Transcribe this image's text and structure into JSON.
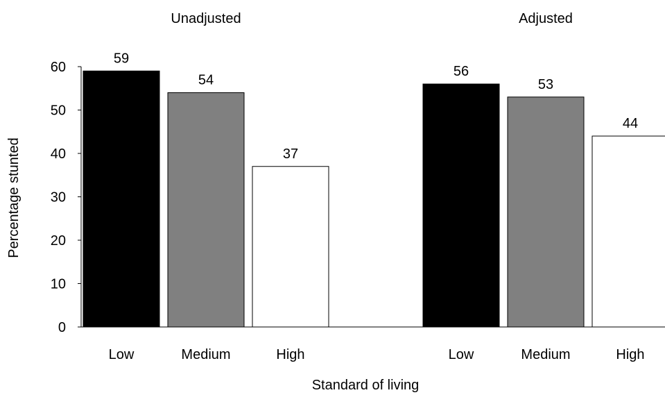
{
  "chart_data": {
    "type": "bar",
    "ylabel": "Percentage stunted",
    "xlabel": "Standard of living",
    "ylim": [
      0,
      60
    ],
    "yticks": [
      0,
      10,
      20,
      30,
      40,
      50,
      60
    ],
    "groups": [
      {
        "title": "Unadjusted",
        "bars": [
          {
            "category": "Low",
            "value": 59,
            "label": "59",
            "color": "#000000"
          },
          {
            "category": "Medium",
            "value": 54,
            "label": "54",
            "color": "#808080"
          },
          {
            "category": "High",
            "value": 37,
            "label": "37",
            "color": "#ffffff"
          }
        ]
      },
      {
        "title": "Adjusted",
        "bars": [
          {
            "category": "Low",
            "value": 56,
            "label": "56",
            "color": "#000000"
          },
          {
            "category": "Medium",
            "value": 53,
            "label": "53",
            "color": "#808080"
          },
          {
            "category": "High",
            "value": 44,
            "label": "44",
            "color": "#ffffff"
          }
        ]
      }
    ],
    "grid": false,
    "legend": "none"
  }
}
